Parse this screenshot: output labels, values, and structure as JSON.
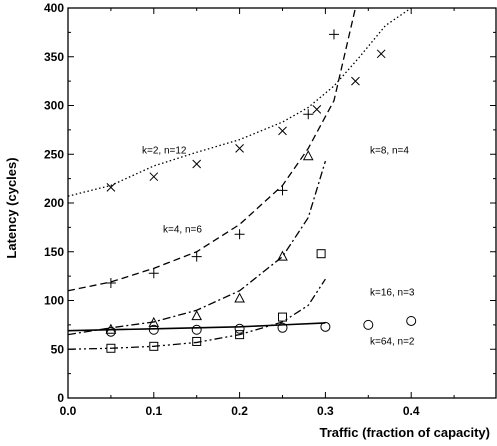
{
  "chart_data": {
    "type": "scatter",
    "title": "",
    "xlabel": "Traffic (fraction of capacity)",
    "ylabel": "Latency (cycles)",
    "xlim": [
      0.0,
      0.5
    ],
    "ylim": [
      0,
      400
    ],
    "x_ticks": [
      "0.0",
      "0.1",
      "0.2",
      "0.3",
      "0.4"
    ],
    "y_ticks": [
      "0",
      "50",
      "100",
      "150",
      "200",
      "250",
      "300",
      "350",
      "400"
    ],
    "grid": false,
    "legend": "none",
    "curves": [
      {
        "label": "k=2, n=12",
        "line_style": "dotted",
        "points": [
          [
            0.0,
            207
          ],
          [
            0.05,
            218
          ],
          [
            0.1,
            238
          ],
          [
            0.15,
            252
          ],
          [
            0.2,
            265
          ],
          [
            0.25,
            283
          ],
          [
            0.28,
            298
          ],
          [
            0.31,
            320
          ],
          [
            0.34,
            350
          ],
          [
            0.37,
            382
          ],
          [
            0.4,
            400
          ]
        ]
      },
      {
        "label": "k=8, n=4",
        "line_style": "dashed",
        "points": [
          [
            0.0,
            110
          ],
          [
            0.05,
            119
          ],
          [
            0.1,
            133
          ],
          [
            0.15,
            150
          ],
          [
            0.2,
            178
          ],
          [
            0.25,
            218
          ],
          [
            0.28,
            256
          ],
          [
            0.31,
            305
          ],
          [
            0.335,
            400
          ]
        ]
      },
      {
        "label": "k=4, n=6",
        "line_style": "dash-dot",
        "points": [
          [
            0.0,
            65
          ],
          [
            0.05,
            72
          ],
          [
            0.1,
            78
          ],
          [
            0.15,
            90
          ],
          [
            0.2,
            110
          ],
          [
            0.25,
            145
          ],
          [
            0.28,
            185
          ],
          [
            0.3,
            243
          ]
        ]
      },
      {
        "label": "k=16, n=3",
        "line_style": "dash-dot-dot",
        "points": [
          [
            0.0,
            50
          ],
          [
            0.05,
            51
          ],
          [
            0.1,
            53
          ],
          [
            0.15,
            57
          ],
          [
            0.2,
            65
          ],
          [
            0.25,
            78
          ],
          [
            0.28,
            95
          ],
          [
            0.3,
            122
          ]
        ]
      },
      {
        "label": "k=64, n=2",
        "line_style": "solid",
        "points": [
          [
            0.0,
            69
          ],
          [
            0.1,
            71
          ],
          [
            0.2,
            73
          ],
          [
            0.25,
            75
          ],
          [
            0.3,
            77
          ]
        ]
      }
    ],
    "scatter": [
      {
        "marker": "x",
        "points": [
          [
            0.05,
            216
          ],
          [
            0.1,
            227
          ],
          [
            0.15,
            240
          ],
          [
            0.2,
            256
          ],
          [
            0.25,
            274
          ],
          [
            0.29,
            296
          ],
          [
            0.335,
            325
          ],
          [
            0.365,
            353
          ]
        ]
      },
      {
        "marker": "+",
        "points": [
          [
            0.05,
            118
          ],
          [
            0.1,
            128
          ],
          [
            0.15,
            145
          ],
          [
            0.2,
            168
          ],
          [
            0.25,
            213
          ],
          [
            0.28,
            291
          ],
          [
            0.31,
            373
          ]
        ]
      },
      {
        "marker": "triangle",
        "points": [
          [
            0.05,
            70
          ],
          [
            0.1,
            77
          ],
          [
            0.15,
            84
          ],
          [
            0.2,
            102
          ],
          [
            0.25,
            145
          ],
          [
            0.28,
            248
          ]
        ]
      },
      {
        "marker": "square",
        "points": [
          [
            0.05,
            51
          ],
          [
            0.1,
            53
          ],
          [
            0.15,
            58
          ],
          [
            0.2,
            65
          ],
          [
            0.25,
            83
          ],
          [
            0.295,
            148
          ]
        ]
      },
      {
        "marker": "circle",
        "points": [
          [
            0.05,
            68
          ],
          [
            0.1,
            70
          ],
          [
            0.15,
            70
          ],
          [
            0.2,
            71
          ],
          [
            0.25,
            72
          ],
          [
            0.3,
            73
          ],
          [
            0.35,
            75
          ],
          [
            0.4,
            79
          ]
        ]
      }
    ]
  }
}
